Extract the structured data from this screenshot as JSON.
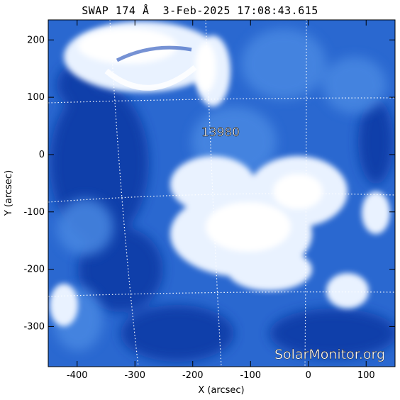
{
  "title": "SWAP 174 Å  3-Feb-2025 17:08:43.615",
  "active_region": "13980",
  "watermark": "SolarMonitor.org",
  "axes": {
    "xlabel": "X (arcsec)",
    "ylabel": "Y (arcsec)",
    "xlim": [
      -450,
      150
    ],
    "ylim": [
      -370,
      235
    ],
    "x_ticks": [
      "-400",
      "-300",
      "-200",
      "-100",
      "0",
      "100"
    ],
    "y_ticks": [
      "200",
      "100",
      "0",
      "-100",
      "-200",
      "-300"
    ]
  },
  "colors": {
    "deep": "#0a3aa8",
    "mid": "#2a6ed6",
    "bright": "#cfe3ff",
    "grid": "#ffffff"
  }
}
